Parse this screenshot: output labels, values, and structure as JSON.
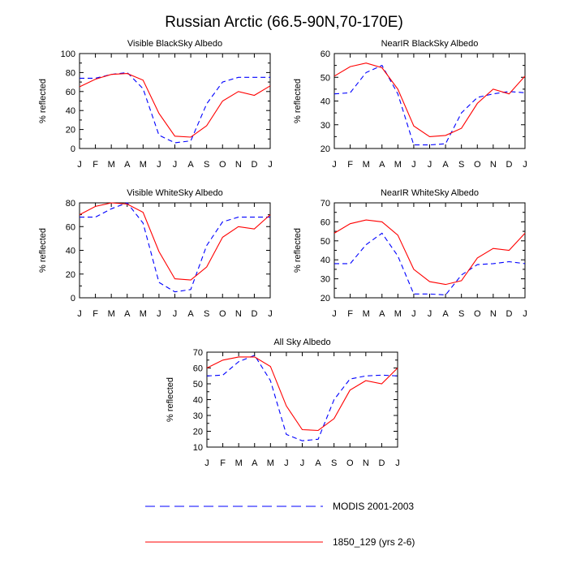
{
  "figure": {
    "title": "Russian Arctic (66.5-90N,70-170E)"
  },
  "legend": [
    {
      "label": "MODIS 2001-2003",
      "color": "#0000ff",
      "dash": "dashed"
    },
    {
      "label": "1850_129 (yrs 2-6)",
      "color": "#ff0000",
      "dash": "solid"
    }
  ],
  "chart_data": [
    {
      "type": "line",
      "title": "Visible BlackSky Albedo",
      "xlabel": "",
      "ylabel": "% reflected",
      "categories": [
        "J",
        "F",
        "M",
        "A",
        "M",
        "J",
        "J",
        "A",
        "S",
        "O",
        "N",
        "D",
        "J"
      ],
      "ylim": [
        0,
        100
      ],
      "yticks": [
        0,
        20,
        40,
        60,
        80,
        100
      ],
      "series": [
        {
          "name": "MODIS 2001-2003",
          "values": [
            74,
            74,
            78,
            80,
            63,
            14,
            6,
            8,
            47,
            70,
            75,
            75,
            75
          ]
        },
        {
          "name": "1850_129 (yrs 2-6)",
          "values": [
            65,
            73,
            78,
            79,
            72,
            37,
            13,
            12,
            24,
            50,
            60,
            56,
            66
          ]
        }
      ]
    },
    {
      "type": "line",
      "title": "NearIR BlackSky Albedo",
      "xlabel": "",
      "ylabel": "% reflected",
      "categories": [
        "J",
        "F",
        "M",
        "A",
        "M",
        "J",
        "J",
        "A",
        "S",
        "O",
        "N",
        "D",
        "J"
      ],
      "ylim": [
        20,
        60
      ],
      "yticks": [
        20,
        30,
        40,
        50,
        60
      ],
      "series": [
        {
          "name": "MODIS 2001-2003",
          "values": [
            43,
            43.5,
            52,
            55,
            43,
            21.5,
            21.5,
            22,
            35,
            41.5,
            43,
            44,
            43.5
          ]
        },
        {
          "name": "1850_129 (yrs 2-6)",
          "values": [
            50.5,
            54.5,
            56,
            54,
            45,
            29.5,
            25,
            25.5,
            28.5,
            39,
            45,
            43,
            50.5
          ]
        }
      ]
    },
    {
      "type": "line",
      "title": "Visible WhiteSky Albedo",
      "xlabel": "",
      "ylabel": "% reflected",
      "categories": [
        "J",
        "F",
        "M",
        "A",
        "M",
        "J",
        "J",
        "A",
        "S",
        "O",
        "N",
        "D",
        "J"
      ],
      "ylim": [
        0,
        80
      ],
      "yticks": [
        0,
        20,
        40,
        60,
        80
      ],
      "series": [
        {
          "name": "MODIS 2001-2003",
          "values": [
            68,
            68,
            75,
            80,
            63,
            13,
            5,
            7,
            44,
            64,
            68,
            68,
            68
          ]
        },
        {
          "name": "1850_129 (yrs 2-6)",
          "values": [
            70,
            77,
            80,
            79,
            72,
            39,
            16,
            15,
            26,
            51,
            60,
            58,
            70
          ]
        }
      ]
    },
    {
      "type": "line",
      "title": "NearIR WhiteSky Albedo",
      "xlabel": "",
      "ylabel": "% reflected",
      "categories": [
        "J",
        "F",
        "M",
        "A",
        "M",
        "J",
        "J",
        "A",
        "S",
        "O",
        "N",
        "D",
        "J"
      ],
      "ylim": [
        20,
        70
      ],
      "yticks": [
        20,
        30,
        40,
        50,
        60,
        70
      ],
      "series": [
        {
          "name": "MODIS 2001-2003",
          "values": [
            38,
            38,
            48,
            54,
            42,
            22,
            22,
            21.5,
            32,
            37.5,
            38,
            39,
            38
          ]
        },
        {
          "name": "1850_129 (yrs 2-6)",
          "values": [
            54,
            59,
            61,
            60,
            53,
            35,
            28.5,
            27,
            29,
            41,
            46,
            45,
            54
          ]
        }
      ]
    },
    {
      "type": "line",
      "title": "All Sky Albedo",
      "xlabel": "",
      "ylabel": "% reflected",
      "categories": [
        "J",
        "F",
        "M",
        "A",
        "M",
        "J",
        "J",
        "A",
        "S",
        "O",
        "N",
        "D",
        "J"
      ],
      "ylim": [
        10,
        70
      ],
      "yticks": [
        10,
        20,
        30,
        40,
        50,
        60,
        70
      ],
      "series": [
        {
          "name": "MODIS 2001-2003",
          "values": [
            55,
            55.5,
            64,
            68,
            52,
            18,
            14,
            15,
            40,
            53,
            55,
            55.5,
            55
          ]
        },
        {
          "name": "1850_129 (yrs 2-6)",
          "values": [
            60,
            65,
            67,
            67,
            61,
            36,
            21,
            20.5,
            28,
            46,
            52,
            50,
            60
          ]
        }
      ]
    }
  ]
}
